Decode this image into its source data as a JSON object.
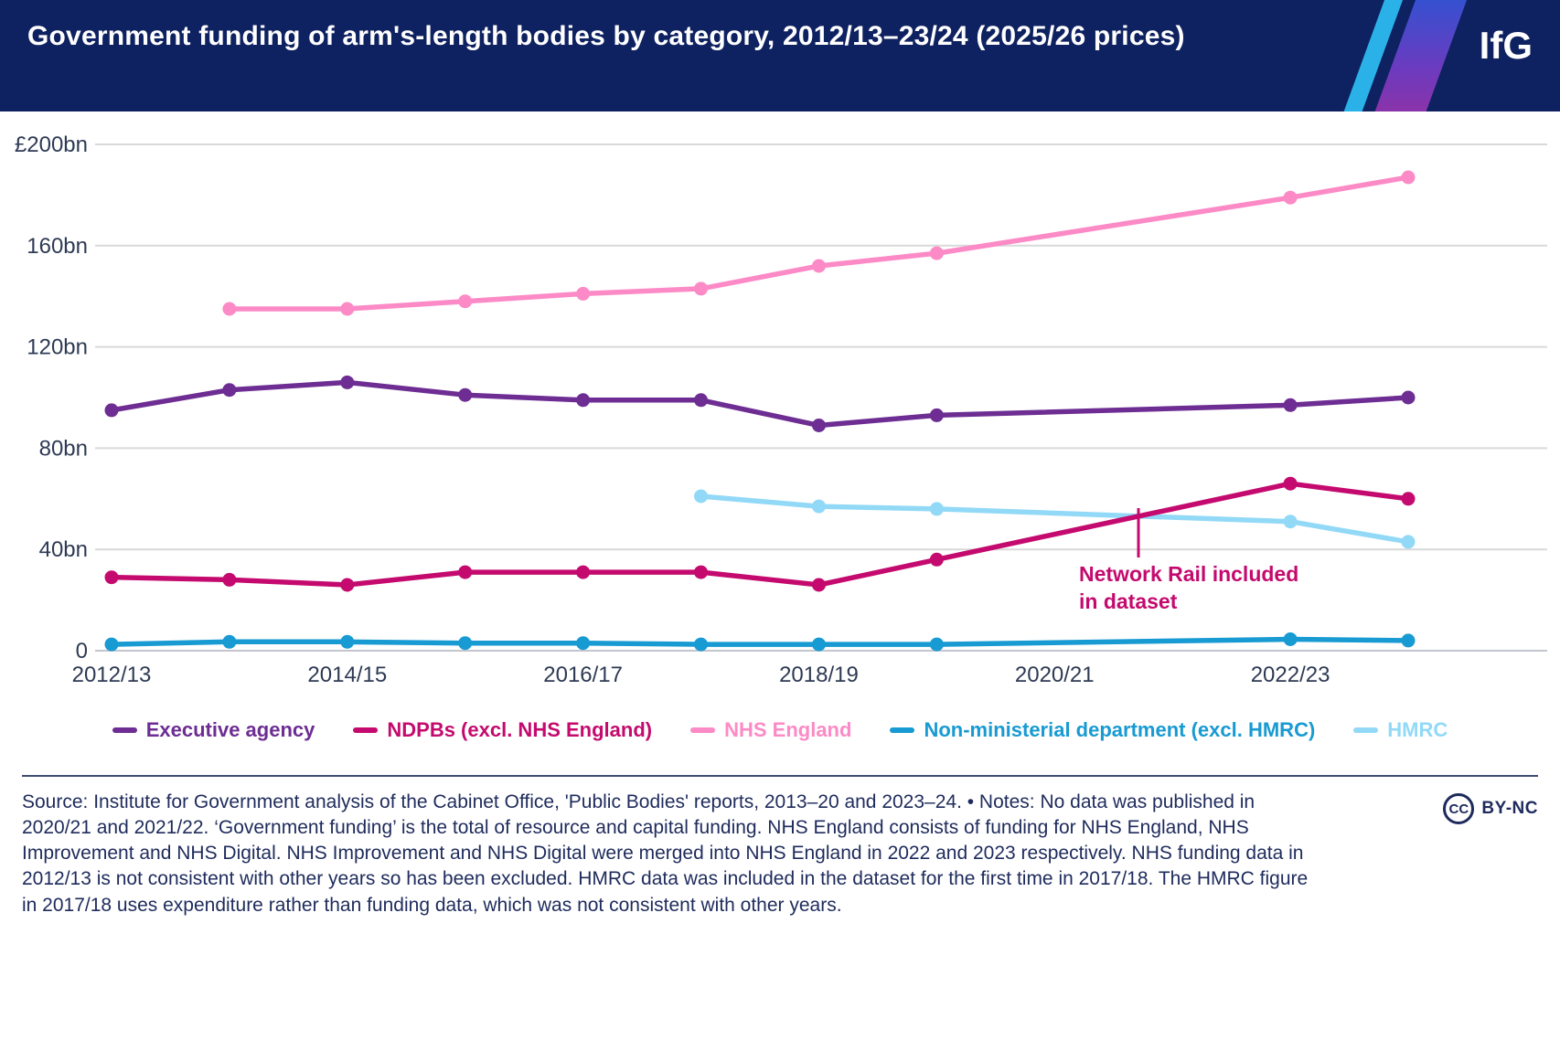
{
  "header": {
    "title": "Government funding of arm's-length bodies by category, 2012/13–23/24 (2025/26 prices)",
    "logo": "IfG"
  },
  "chart_data": {
    "type": "line",
    "title": "Government funding of arm's-length bodies by category, 2012/13–23/24 (2025/26 prices)",
    "categories": [
      "2012/13",
      "2013/14",
      "2014/15",
      "2015/16",
      "2016/17",
      "2017/18",
      "2018/19",
      "2019/20",
      "2020/21",
      "2021/22",
      "2022/23",
      "2023/24"
    ],
    "x_tick_indices": [
      0,
      2,
      4,
      6,
      8,
      10
    ],
    "x_tick_labels": [
      "2012/13",
      "2014/15",
      "2016/17",
      "2018/19",
      "2020/21",
      "2022/23"
    ],
    "y_ticks": [
      0,
      40,
      80,
      120,
      160,
      200
    ],
    "y_tick_labels": [
      "0",
      "40bn",
      "80bn",
      "120bn",
      "160bn",
      "£200bn"
    ],
    "ylim": [
      0,
      200
    ],
    "grid": true,
    "legend_position": "bottom",
    "series": [
      {
        "name": "Executive agency",
        "color": "#6d2d93",
        "values": [
          95,
          103,
          106,
          101,
          99,
          99,
          89,
          93,
          null,
          null,
          97,
          100
        ]
      },
      {
        "name": "NDPBs (excl. NHS England)",
        "color": "#c40a6e",
        "values": [
          29,
          28,
          26,
          31,
          31,
          31,
          26,
          36,
          null,
          null,
          66,
          60
        ]
      },
      {
        "name": "NHS England",
        "color": "#fc8ac6",
        "values": [
          null,
          135,
          135,
          138,
          141,
          143,
          152,
          157,
          null,
          null,
          179,
          187
        ]
      },
      {
        "name": "Non-ministerial department (excl. HMRC)",
        "color": "#189ad2",
        "values": [
          2.5,
          3.5,
          3.5,
          3,
          3,
          2.5,
          2.5,
          2.5,
          null,
          null,
          4.5,
          4
        ]
      },
      {
        "name": "HMRC",
        "color": "#92d9f7",
        "values": [
          null,
          null,
          null,
          null,
          null,
          61,
          57,
          56,
          null,
          null,
          51,
          43
        ]
      }
    ],
    "annotation": {
      "text": "Network Rail included in dataset",
      "color": "#c40a6e"
    }
  },
  "footer": {
    "source": "Source: Institute for Government analysis of the Cabinet Office, 'Public Bodies' reports, 2013–20 and 2023–24. • Notes: No data was published in 2020/21 and 2021/22. ‘Government funding’ is the total of resource and capital funding. NHS England consists of funding for NHS England, NHS Improvement and NHS Digital. NHS Improvement and NHS Digital were merged into NHS England in 2022 and 2023 respectively. NHS funding data in 2012/13 is not consistent with other years so has been excluded. HMRC data was included in the dataset for the first time in 2017/18. The HMRC figure in 2017/18 uses expenditure rather than funding data, which was not consistent with other years.",
    "cc": "CC",
    "license": "BY-NC"
  }
}
